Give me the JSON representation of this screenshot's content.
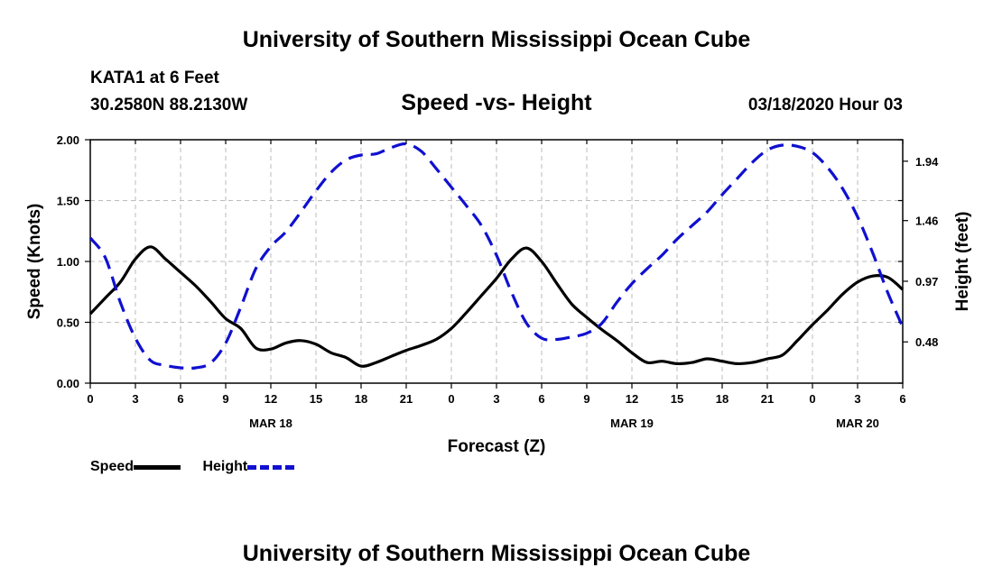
{
  "header": {
    "top_title": "University of Southern Mississippi Ocean Cube",
    "station": "KATA1 at 6 Feet",
    "coords": "30.2580N 88.2130W",
    "chart_title": "Speed -vs- Height",
    "datetime": "03/18/2020 Hour 03"
  },
  "footer": {
    "bottom_title": "University of Southern Mississippi Ocean Cube"
  },
  "legend": {
    "speed_label": "Speed",
    "height_label": "Height"
  },
  "colors": {
    "speed": "#000000",
    "height": "#1010d0",
    "grid": "#bbbbbb"
  },
  "chart_data": {
    "type": "line",
    "title": "Speed -vs- Height",
    "xlabel": "Forecast (Z)",
    "ylabel": "Speed (Knots)",
    "y2label": "Height (feet)",
    "xlim": [
      0,
      54
    ],
    "ylim": [
      0,
      2.0
    ],
    "y2lim": [
      0.1465,
      2.1135
    ],
    "x_ticks": [
      0,
      3,
      6,
      9,
      12,
      15,
      18,
      21,
      24,
      27,
      30,
      33,
      36,
      39,
      42,
      45,
      48,
      51,
      54
    ],
    "x_tick_labels": [
      "0",
      "3",
      "6",
      "9",
      "12",
      "15",
      "18",
      "21",
      "0",
      "3",
      "6",
      "9",
      "12",
      "15",
      "18",
      "21",
      "0",
      "3",
      "6"
    ],
    "y_ticks": [
      0.0,
      0.5,
      1.0,
      1.5,
      2.0
    ],
    "y_tick_labels": [
      "0.00",
      "0.50",
      "1.00",
      "1.50",
      "2.00"
    ],
    "y2_ticks": [
      0.48,
      0.97,
      1.46,
      1.94
    ],
    "y2_tick_labels": [
      "0.48",
      "0.97",
      "1.46",
      "1.94"
    ],
    "date_labels": [
      {
        "x": 12,
        "label": "MAR 18"
      },
      {
        "x": 36,
        "label": "MAR 19"
      },
      {
        "x": 51,
        "label": "MAR 20"
      }
    ],
    "grid": true,
    "series": [
      {
        "name": "Speed",
        "axis": "left",
        "style": "solid",
        "x": [
          0,
          1,
          2,
          3,
          4,
          5,
          6,
          7,
          8,
          9,
          10,
          11,
          12,
          13,
          14,
          15,
          16,
          17,
          18,
          19,
          20,
          21,
          22,
          23,
          24,
          25,
          26,
          27,
          28,
          29,
          30,
          31,
          32,
          33,
          34,
          35,
          36,
          37,
          38,
          39,
          40,
          41,
          42,
          43,
          44,
          45,
          46,
          47,
          48,
          49,
          50,
          51,
          52,
          53,
          54
        ],
        "values": [
          0.57,
          0.7,
          0.83,
          1.02,
          1.12,
          1.02,
          0.91,
          0.8,
          0.67,
          0.53,
          0.45,
          0.29,
          0.28,
          0.33,
          0.35,
          0.32,
          0.25,
          0.21,
          0.14,
          0.17,
          0.22,
          0.27,
          0.31,
          0.36,
          0.45,
          0.58,
          0.72,
          0.86,
          1.02,
          1.11,
          1.0,
          0.82,
          0.65,
          0.54,
          0.44,
          0.35,
          0.25,
          0.17,
          0.18,
          0.16,
          0.17,
          0.2,
          0.18,
          0.16,
          0.17,
          0.2,
          0.23,
          0.35,
          0.48,
          0.6,
          0.73,
          0.83,
          0.88,
          0.87,
          0.77
        ]
      },
      {
        "name": "Height",
        "axis": "right",
        "style": "dashed",
        "x": [
          0,
          1,
          2,
          3,
          4,
          5,
          6,
          7,
          8,
          9,
          10,
          11,
          12,
          13,
          14,
          15,
          16,
          17,
          18,
          19,
          20,
          21,
          22,
          23,
          24,
          25,
          26,
          27,
          28,
          29,
          30,
          31,
          32,
          33,
          34,
          35,
          36,
          37,
          38,
          39,
          40,
          41,
          42,
          43,
          44,
          45,
          46,
          47,
          48,
          49,
          50,
          51,
          52,
          53,
          54
        ],
        "values": [
          1.32,
          1.16,
          0.8,
          0.51,
          0.33,
          0.29,
          0.27,
          0.27,
          0.31,
          0.47,
          0.76,
          1.07,
          1.25,
          1.37,
          1.53,
          1.7,
          1.85,
          1.95,
          1.99,
          2.0,
          2.05,
          2.08,
          2.02,
          1.88,
          1.73,
          1.58,
          1.42,
          1.18,
          0.88,
          0.63,
          0.51,
          0.5,
          0.52,
          0.55,
          0.63,
          0.8,
          0.95,
          1.07,
          1.18,
          1.31,
          1.42,
          1.53,
          1.67,
          1.8,
          1.93,
          2.03,
          2.07,
          2.06,
          2.01,
          1.89,
          1.72,
          1.49,
          1.2,
          0.88,
          0.6
        ]
      }
    ]
  }
}
